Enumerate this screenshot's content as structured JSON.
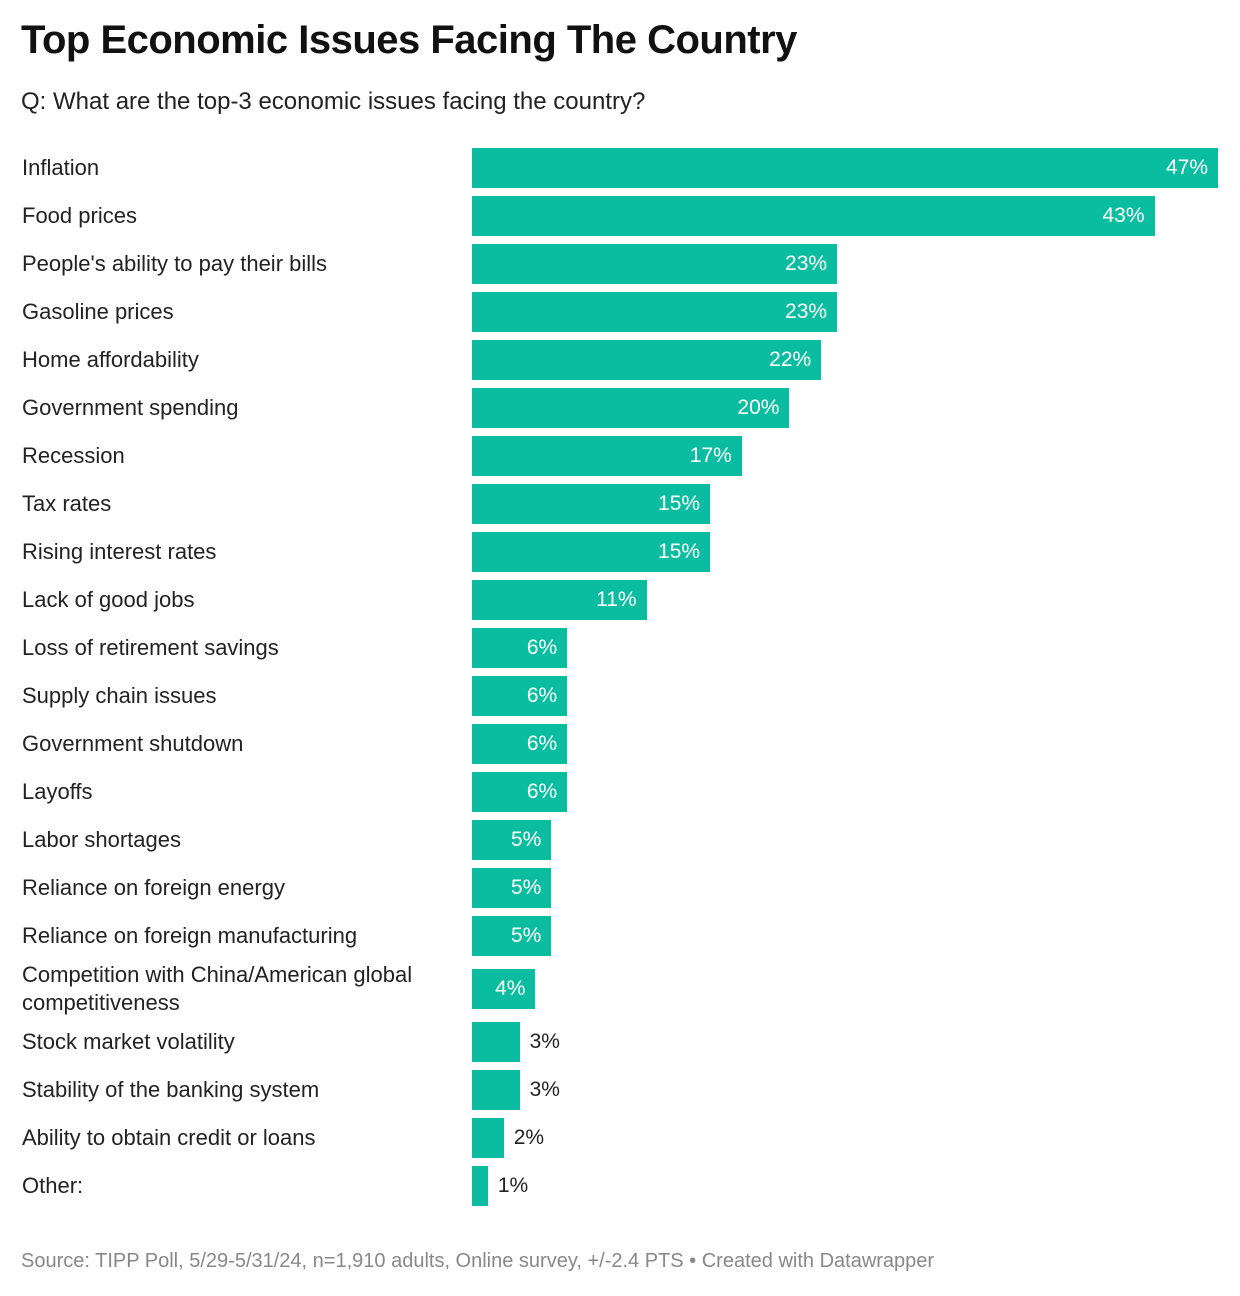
{
  "title": "Top Economic Issues Facing The Country",
  "subtitle": "Q: What are the top-3 economic issues facing the country?",
  "footer": {
    "source": "Source: TIPP Poll, 5/29-5/31/24, n=1,910 adults, Online survey, +/-2.4 PTS",
    "separator": " • ",
    "credit": "Created with Datawrapper"
  },
  "colors": {
    "bar": "#0abda0",
    "label_inside": "#ffffff",
    "label_outside": "#222222",
    "footer": "#888888"
  },
  "chart_data": {
    "type": "bar",
    "orientation": "horizontal",
    "title": "Top Economic Issues Facing The Country",
    "subtitle": "Q: What are the top-3 economic issues facing the country?",
    "value_suffix": "%",
    "xlim": [
      0,
      47
    ],
    "grid": false,
    "legend": false,
    "categories": [
      "Inflation",
      "Food prices",
      "People's ability to pay their bills",
      "Gasoline prices",
      "Home affordability",
      "Government spending",
      "Recession",
      "Tax rates",
      "Rising interest rates",
      "Lack of good jobs",
      "Loss of retirement savings",
      "Supply chain issues",
      "Government shutdown",
      "Layoffs",
      "Labor shortages",
      "Reliance on foreign energy",
      "Reliance on foreign manufacturing",
      "Competition with China/American global competitiveness",
      "Stock market volatility",
      "Stability of the banking system",
      "Ability to obtain credit or loans",
      "Other:"
    ],
    "values": [
      47,
      43,
      23,
      23,
      22,
      20,
      17,
      15,
      15,
      11,
      6,
      6,
      6,
      6,
      5,
      5,
      5,
      4,
      3,
      3,
      2,
      1
    ],
    "value_labels": [
      "47%",
      "43%",
      "23%",
      "23%",
      "22%",
      "20%",
      "17%",
      "15%",
      "15%",
      "11%",
      "6%",
      "6%",
      "6%",
      "6%",
      "5%",
      "5%",
      "5%",
      "4%",
      "3%",
      "3%",
      "2%",
      "1%"
    ]
  }
}
